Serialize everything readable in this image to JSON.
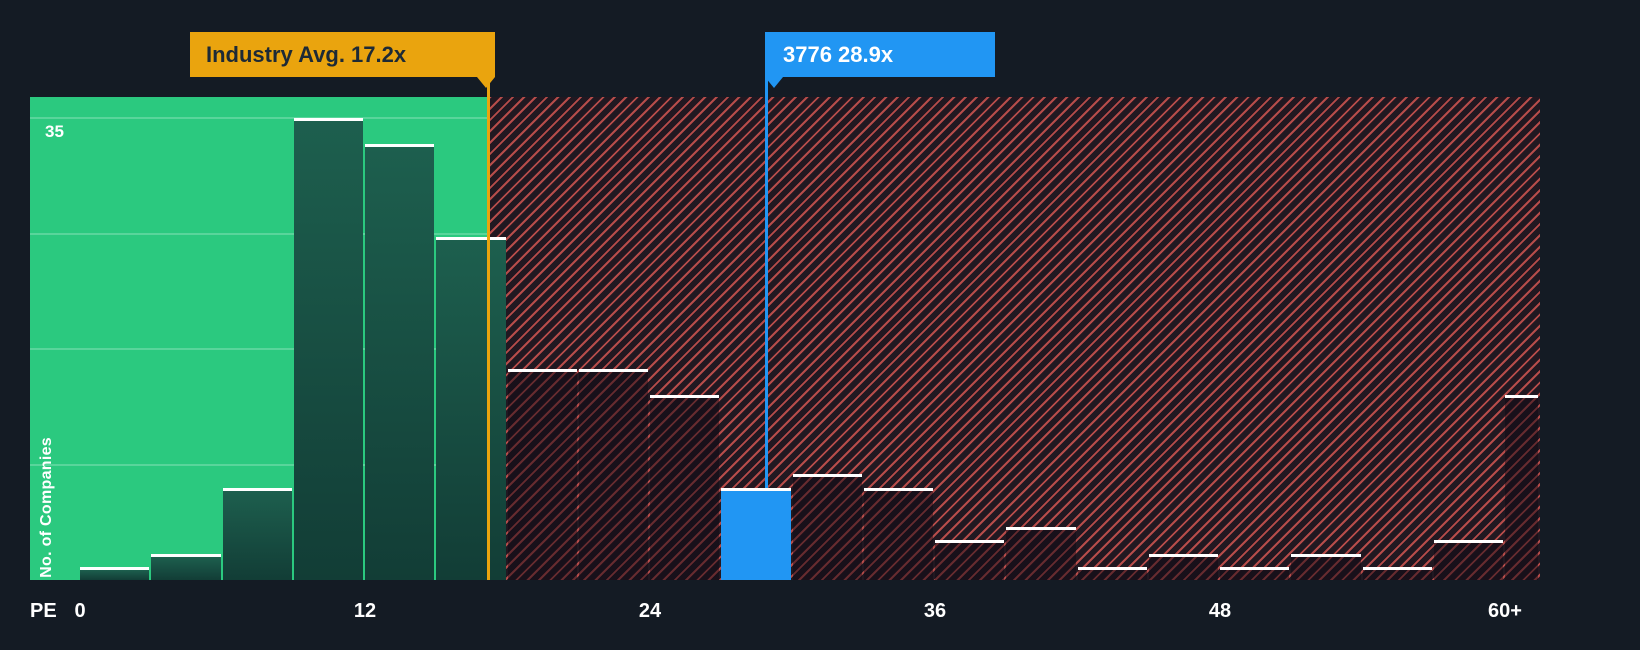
{
  "axis": {
    "x_title": "PE",
    "y_title": "No. of Companies",
    "y_max_label": "35",
    "ticks": [
      {
        "value": 0,
        "label": "0"
      },
      {
        "value": 12,
        "label": "12"
      },
      {
        "value": 24,
        "label": "24"
      },
      {
        "value": 36,
        "label": "36"
      },
      {
        "value": 48,
        "label": "48"
      },
      {
        "value": 60,
        "label": "60+"
      }
    ]
  },
  "chart_data": {
    "type": "bar",
    "title": "Price-to-Earnings ratio histogram: number of companies per PE bin",
    "xlabel": "PE",
    "ylabel": "No. of Companies",
    "bin_width": 3,
    "bin_starts": [
      0,
      3,
      6,
      9,
      12,
      15,
      18,
      21,
      24,
      27,
      30,
      33,
      36,
      39,
      42,
      45,
      48,
      51,
      54,
      57,
      60
    ],
    "values": [
      1,
      2,
      7,
      35,
      33,
      26,
      16,
      16,
      14,
      7,
      8,
      7,
      3,
      4,
      1,
      2,
      1,
      2,
      1,
      3,
      14
    ],
    "ylim": [
      0,
      36.6
    ],
    "xlim": [
      -2.1,
      61.5
    ],
    "y_gridlines": [
      8.75,
      17.5,
      26.25,
      35
    ],
    "grid": "horizontal, only visible over below-average region",
    "industry_avg": 17.2,
    "highlight": {
      "bin_start": 27,
      "company": "3776",
      "pe": 28.9,
      "count": 7,
      "color": "#2196f3"
    },
    "annotations": {
      "industry": {
        "text": "Industry Avg. 17.2x",
        "x": 17.2,
        "color": "#eaa40e",
        "text_color": "#1d2a36"
      },
      "company": {
        "text": "3776 28.9x",
        "x": 28.9,
        "color": "#2196f3",
        "text_color": "#ffffff"
      }
    },
    "colors": {
      "background": "#141b24",
      "below_avg_region": "#2bc97f",
      "below_avg_bar_top": "#1d5f4e",
      "below_avg_bar_bottom": "#123d36",
      "above_avg_hatch_stripe": "#e05a55",
      "bar_cap": "#ffffff"
    }
  }
}
